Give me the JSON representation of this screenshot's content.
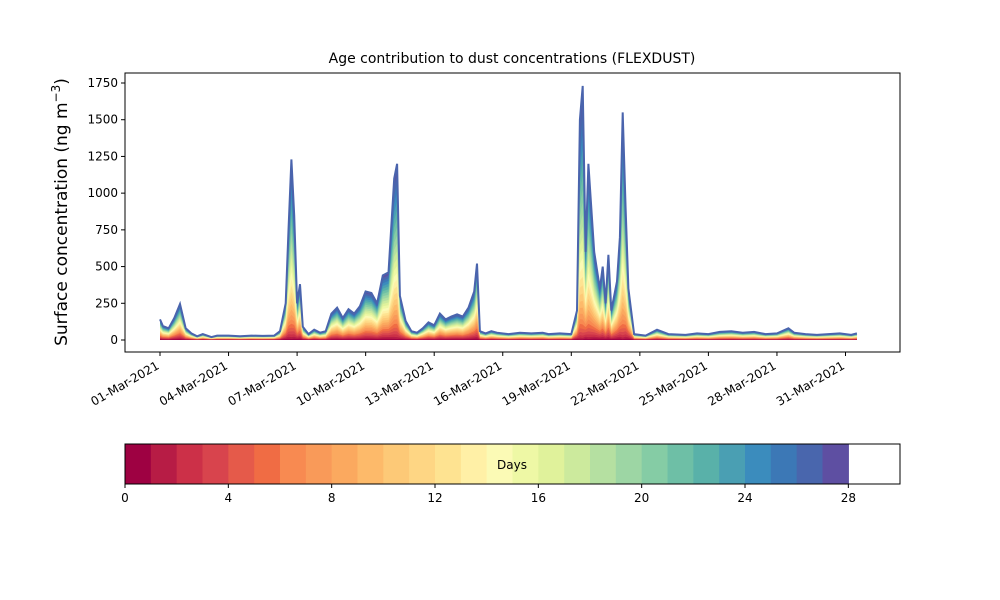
{
  "chart_data": {
    "type": "area",
    "title": "Age contribution to dust concentrations (FLEXDUST)",
    "xlabel": "",
    "ylabel": "Surface concentration (ng m",
    "ylabel_sup": "−3",
    "ylabel_close": ")",
    "x_start": "2021-03-01",
    "x_end": "2021-04-01",
    "x_tick_labels": [
      "01-Mar-2021",
      "04-Mar-2021",
      "07-Mar-2021",
      "10-Mar-2021",
      "13-Mar-2021",
      "16-Mar-2021",
      "19-Mar-2021",
      "22-Mar-2021",
      "25-Mar-2021",
      "28-Mar-2021",
      "31-Mar-2021"
    ],
    "x_tick_dates": [
      "2021-03-01",
      "2021-03-04",
      "2021-03-07",
      "2021-03-10",
      "2021-03-13",
      "2021-03-16",
      "2021-03-19",
      "2021-03-22",
      "2021-03-25",
      "2021-03-28",
      "2021-03-31"
    ],
    "y_ticks": [
      0,
      250,
      500,
      750,
      1000,
      1250,
      1500,
      1750
    ],
    "ylim": [
      -90,
      1830
    ],
    "stack_variable": "age (days)",
    "total": [
      [
        "2021-03-01 00:00",
        140
      ],
      [
        "2021-03-01 03:00",
        95
      ],
      [
        "2021-03-01 09:00",
        80
      ],
      [
        "2021-03-01 15:00",
        150
      ],
      [
        "2021-03-01 21:00",
        245
      ],
      [
        "2021-03-02 03:00",
        80
      ],
      [
        "2021-03-02 09:00",
        45
      ],
      [
        "2021-03-02 15:00",
        25
      ],
      [
        "2021-03-02 21:00",
        40
      ],
      [
        "2021-03-03 06:00",
        20
      ],
      [
        "2021-03-03 12:00",
        30
      ],
      [
        "2021-03-04 00:00",
        30
      ],
      [
        "2021-03-04 12:00",
        25
      ],
      [
        "2021-03-05 00:00",
        30
      ],
      [
        "2021-03-05 12:00",
        28
      ],
      [
        "2021-03-06 00:00",
        30
      ],
      [
        "2021-03-06 06:00",
        60
      ],
      [
        "2021-03-06 12:00",
        250
      ],
      [
        "2021-03-06 15:00",
        750
      ],
      [
        "2021-03-06 18:00",
        1230
      ],
      [
        "2021-03-06 21:00",
        850
      ],
      [
        "2021-03-07 00:00",
        250
      ],
      [
        "2021-03-07 03:00",
        380
      ],
      [
        "2021-03-07 06:00",
        90
      ],
      [
        "2021-03-07 12:00",
        40
      ],
      [
        "2021-03-07 18:00",
        70
      ],
      [
        "2021-03-08 00:00",
        50
      ],
      [
        "2021-03-08 06:00",
        60
      ],
      [
        "2021-03-08 12:00",
        180
      ],
      [
        "2021-03-08 18:00",
        220
      ],
      [
        "2021-03-09 00:00",
        150
      ],
      [
        "2021-03-09 06:00",
        210
      ],
      [
        "2021-03-09 12:00",
        180
      ],
      [
        "2021-03-09 18:00",
        230
      ],
      [
        "2021-03-10 00:00",
        330
      ],
      [
        "2021-03-10 06:00",
        320
      ],
      [
        "2021-03-10 12:00",
        250
      ],
      [
        "2021-03-10 18:00",
        440
      ],
      [
        "2021-03-11 00:00",
        460
      ],
      [
        "2021-03-11 06:00",
        1100
      ],
      [
        "2021-03-11 09:00",
        1200
      ],
      [
        "2021-03-11 12:00",
        300
      ],
      [
        "2021-03-11 18:00",
        130
      ],
      [
        "2021-03-12 00:00",
        60
      ],
      [
        "2021-03-12 06:00",
        50
      ],
      [
        "2021-03-12 12:00",
        80
      ],
      [
        "2021-03-12 18:00",
        120
      ],
      [
        "2021-03-13 00:00",
        100
      ],
      [
        "2021-03-13 06:00",
        180
      ],
      [
        "2021-03-13 12:00",
        140
      ],
      [
        "2021-03-13 18:00",
        160
      ],
      [
        "2021-03-14 00:00",
        175
      ],
      [
        "2021-03-14 06:00",
        160
      ],
      [
        "2021-03-14 12:00",
        220
      ],
      [
        "2021-03-14 18:00",
        330
      ],
      [
        "2021-03-14 21:00",
        520
      ],
      [
        "2021-03-15 00:00",
        60
      ],
      [
        "2021-03-15 06:00",
        45
      ],
      [
        "2021-03-15 12:00",
        60
      ],
      [
        "2021-03-15 18:00",
        50
      ],
      [
        "2021-03-16 06:00",
        40
      ],
      [
        "2021-03-16 18:00",
        50
      ],
      [
        "2021-03-17 06:00",
        45
      ],
      [
        "2021-03-17 18:00",
        50
      ],
      [
        "2021-03-18 00:00",
        40
      ],
      [
        "2021-03-18 12:00",
        45
      ],
      [
        "2021-03-19 00:00",
        40
      ],
      [
        "2021-03-19 06:00",
        200
      ],
      [
        "2021-03-19 09:00",
        1500
      ],
      [
        "2021-03-19 12:00",
        1730
      ],
      [
        "2021-03-19 15:00",
        600
      ],
      [
        "2021-03-19 18:00",
        1200
      ],
      [
        "2021-03-20 00:00",
        600
      ],
      [
        "2021-03-20 06:00",
        350
      ],
      [
        "2021-03-20 09:00",
        500
      ],
      [
        "2021-03-20 12:00",
        250
      ],
      [
        "2021-03-20 15:00",
        580
      ],
      [
        "2021-03-20 18:00",
        200
      ],
      [
        "2021-03-21 00:00",
        400
      ],
      [
        "2021-03-21 03:00",
        700
      ],
      [
        "2021-03-21 06:00",
        1550
      ],
      [
        "2021-03-21 09:00",
        900
      ],
      [
        "2021-03-21 12:00",
        350
      ],
      [
        "2021-03-21 18:00",
        40
      ],
      [
        "2021-03-22 06:00",
        30
      ],
      [
        "2021-03-22 18:00",
        70
      ],
      [
        "2021-03-23 06:00",
        40
      ],
      [
        "2021-03-24 00:00",
        35
      ],
      [
        "2021-03-24 12:00",
        45
      ],
      [
        "2021-03-25 00:00",
        40
      ],
      [
        "2021-03-25 12:00",
        55
      ],
      [
        "2021-03-26 00:00",
        60
      ],
      [
        "2021-03-26 12:00",
        50
      ],
      [
        "2021-03-27 00:00",
        55
      ],
      [
        "2021-03-27 12:00",
        40
      ],
      [
        "2021-03-28 00:00",
        45
      ],
      [
        "2021-03-28 12:00",
        80
      ],
      [
        "2021-03-28 18:00",
        50
      ],
      [
        "2021-03-29 06:00",
        40
      ],
      [
        "2021-03-29 18:00",
        35
      ],
      [
        "2021-03-30 06:00",
        40
      ],
      [
        "2021-03-30 18:00",
        45
      ],
      [
        "2021-03-31 06:00",
        35
      ],
      [
        "2021-03-31 12:00",
        45
      ]
    ],
    "colorbar": {
      "label": "Days",
      "range": [
        0,
        30
      ],
      "ticks": [
        0,
        4,
        8,
        12,
        16,
        20,
        24,
        28
      ],
      "colors": [
        "#9e0142",
        "#b71c45",
        "#cc3048",
        "#d8444d",
        "#e55a4a",
        "#f06c44",
        "#f88a51",
        "#f99a59",
        "#fba95f",
        "#fdba6a",
        "#fdc977",
        "#fed684",
        "#fee391",
        "#fff0a6",
        "#fbfab5",
        "#eef8a5",
        "#e0f29b",
        "#ccea9d",
        "#b5e0a1",
        "#9dd6a4",
        "#85cca5",
        "#6ebfa6",
        "#59b1a9",
        "#4a9fb3",
        "#3b8cbd",
        "#3c78b6",
        "#4966ad",
        "#5e4fa2"
      ]
    }
  }
}
